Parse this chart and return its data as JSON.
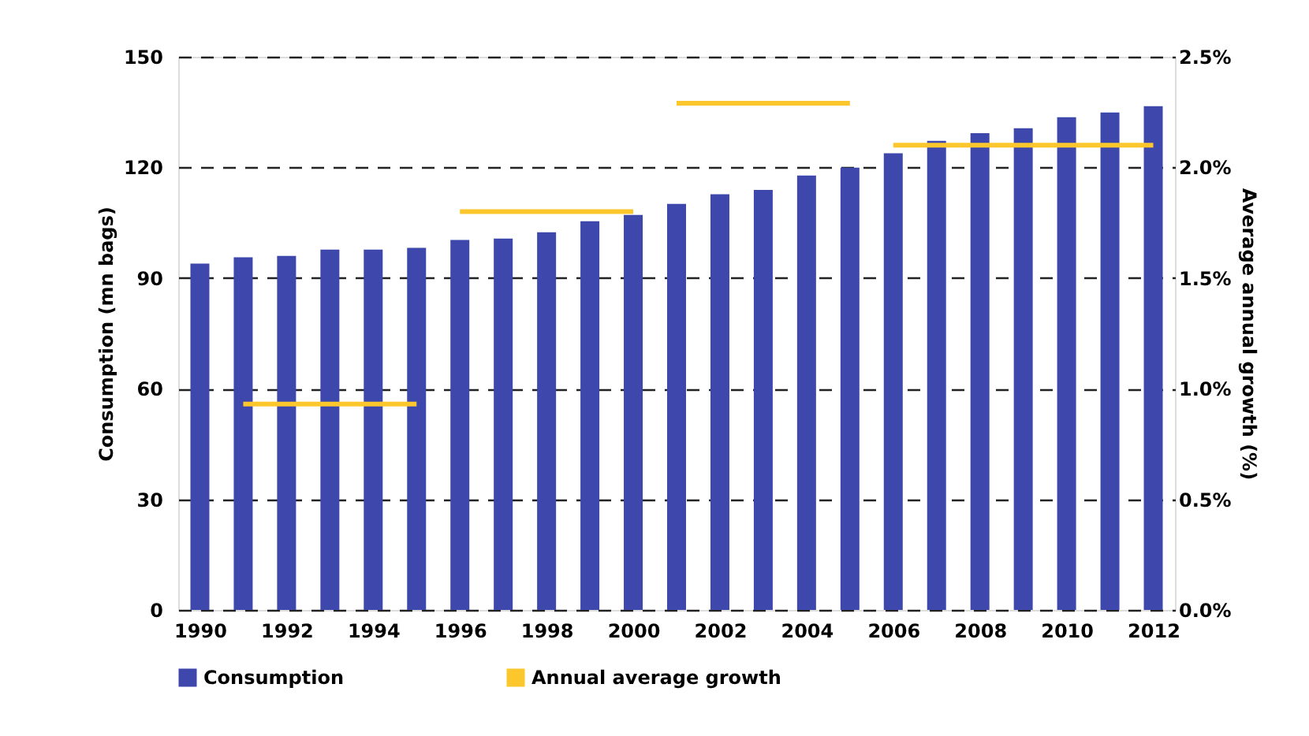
{
  "chart_data": {
    "type": "bar",
    "x": [
      1990,
      1991,
      1992,
      1993,
      1994,
      1995,
      1996,
      1997,
      1998,
      1999,
      2000,
      2001,
      2002,
      2003,
      2004,
      2005,
      2006,
      2007,
      2008,
      2009,
      2010,
      2011,
      2012
    ],
    "xlim": [
      1989.5,
      2012.5
    ],
    "xticks": [
      1990,
      1992,
      1994,
      1996,
      1998,
      2000,
      2002,
      2004,
      2006,
      2008,
      2010,
      2012
    ],
    "ylabel": "Consumption (mn bags)",
    "y2label": "Average annual growth (%)",
    "ylim": [
      0,
      150
    ],
    "yticks": [
      0,
      30,
      60,
      90,
      120,
      150
    ],
    "y2lim": [
      0,
      2.5
    ],
    "y2ticks": [
      {
        "value": 0,
        "label": "0.0%"
      },
      {
        "value": 0.5,
        "label": "0.5%"
      },
      {
        "value": 1,
        "label": "1.0%"
      },
      {
        "value": 1.5,
        "label": "1.5%"
      },
      {
        "value": 2,
        "label": "2.0%"
      },
      {
        "value": 2.5,
        "label": "2.5%"
      }
    ],
    "series": [
      {
        "name": "Consumption",
        "color": "#3e47ab",
        "values": [
          93.9,
          95.6,
          96.0,
          97.7,
          97.7,
          98.2,
          100.3,
          100.7,
          102.4,
          105.4,
          107.1,
          110.1,
          112.7,
          113.9,
          117.8,
          119.9,
          123.8,
          127.2,
          129.3,
          130.6,
          133.6,
          134.9,
          136.6
        ]
      },
      {
        "name": "Annual average growth",
        "type": "line",
        "axis": "y2",
        "color": "#fcc72c",
        "x": [
          1991,
          1995
        ],
        "values": [
          0.93,
          0.93
        ]
      },
      {
        "type": "line",
        "axis": "y2",
        "color": "#fcc72c",
        "x": [
          1996,
          2000
        ],
        "values": [
          1.8,
          1.8
        ]
      },
      {
        "type": "line",
        "axis": "y2",
        "color": "#fcc72c",
        "x": [
          2001,
          2005
        ],
        "values": [
          2.29,
          2.29
        ]
      },
      {
        "type": "line",
        "axis": "y2",
        "color": "#fcc72c",
        "x": [
          2006,
          2012
        ],
        "values": [
          2.1,
          2.1
        ]
      }
    ],
    "grid": "y",
    "legend": "bottom"
  }
}
